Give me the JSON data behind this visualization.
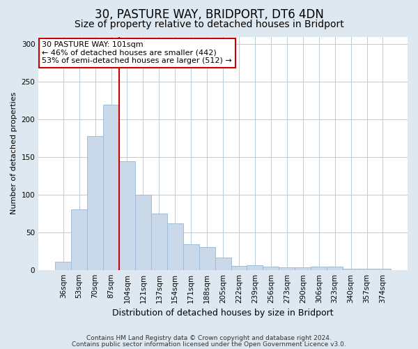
{
  "title1": "30, PASTURE WAY, BRIDPORT, DT6 4DN",
  "title2": "Size of property relative to detached houses in Bridport",
  "xlabel": "Distribution of detached houses by size in Bridport",
  "ylabel": "Number of detached properties",
  "categories": [
    "36sqm",
    "53sqm",
    "70sqm",
    "87sqm",
    "104sqm",
    "121sqm",
    "137sqm",
    "154sqm",
    "171sqm",
    "188sqm",
    "205sqm",
    "222sqm",
    "239sqm",
    "256sqm",
    "273sqm",
    "290sqm",
    "306sqm",
    "323sqm",
    "340sqm",
    "357sqm",
    "374sqm"
  ],
  "values": [
    11,
    80,
    178,
    220,
    144,
    100,
    75,
    62,
    34,
    30,
    16,
    5,
    6,
    4,
    3,
    3,
    4,
    4,
    2,
    2,
    2
  ],
  "bar_color": "#c9d9ea",
  "bar_edge_color": "#a0bcd8",
  "vline_color": "#cc0000",
  "vline_x_index": 4,
  "annotation_text": "30 PASTURE WAY: 101sqm\n← 46% of detached houses are smaller (442)\n53% of semi-detached houses are larger (512) →",
  "annotation_box_facecolor": "white",
  "annotation_box_edgecolor": "#cc0000",
  "ylim": [
    0,
    310
  ],
  "yticks": [
    0,
    50,
    100,
    150,
    200,
    250,
    300
  ],
  "footer1": "Contains HM Land Registry data © Crown copyright and database right 2024.",
  "footer2": "Contains public sector information licensed under the Open Government Licence v3.0.",
  "fig_facecolor": "#dde8f0",
  "plot_facecolor": "white",
  "grid_color": "#b8ccd8",
  "title1_fontsize": 12,
  "title2_fontsize": 10,
  "xlabel_fontsize": 9,
  "ylabel_fontsize": 8,
  "tick_fontsize": 7.5,
  "annot_fontsize": 8,
  "footer_fontsize": 6.5
}
